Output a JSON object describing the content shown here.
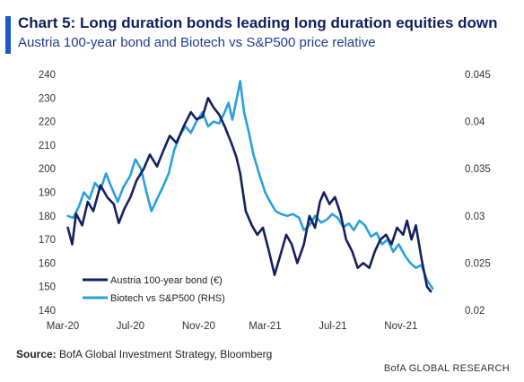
{
  "header": {
    "title": "Chart 5: Long duration bonds leading long duration equities down",
    "subtitle": "Austria 100-year bond and Biotech vs S&P500 price relative"
  },
  "source": {
    "label": "Source:",
    "text": "BofA Global Investment Strategy, Bloomberg"
  },
  "footer": {
    "brand": "BofA GLOBAL RESEARCH"
  },
  "colors": {
    "accent": "#1f58c9",
    "austria": "#14205e",
    "biotech": "#2aa0dc"
  },
  "chart_data": {
    "type": "line",
    "x_tick_labels": [
      "Mar-20",
      "Jul-20",
      "Nov-20",
      "Mar-21",
      "Jul-21",
      "Nov-21"
    ],
    "x_ticks": [
      "2020-03-01",
      "2020-07-01",
      "2020-11-01",
      "2021-03-01",
      "2021-07-01",
      "2021-11-01"
    ],
    "xlim": [
      "2020-03-01",
      "2022-01-05"
    ],
    "y_left": {
      "ylim": [
        140,
        240
      ],
      "ticks": [
        "140",
        "150",
        "160",
        "170",
        "180",
        "190",
        "200",
        "210",
        "220",
        "230",
        "240"
      ]
    },
    "y_right": {
      "ylim": [
        0.02,
        0.045
      ],
      "ticks": [
        "0.02",
        "0.025",
        "0.03",
        "0.035",
        "0.04",
        "0.045"
      ]
    },
    "grid": false,
    "legend_position": "bottom-left",
    "series": [
      {
        "name": "Austria 100-year bond (€)",
        "axis": "left",
        "color": "#14205e",
        "points": [
          [
            "2020-03-10",
            175
          ],
          [
            "2020-03-18",
            168
          ],
          [
            "2020-03-25",
            181
          ],
          [
            "2020-04-05",
            176
          ],
          [
            "2020-04-15",
            186
          ],
          [
            "2020-04-25",
            182
          ],
          [
            "2020-05-08",
            193
          ],
          [
            "2020-05-20",
            188
          ],
          [
            "2020-06-01",
            185
          ],
          [
            "2020-06-10",
            177
          ],
          [
            "2020-06-20",
            183
          ],
          [
            "2020-07-01",
            188
          ],
          [
            "2020-07-12",
            195
          ],
          [
            "2020-07-25",
            200
          ],
          [
            "2020-08-05",
            206
          ],
          [
            "2020-08-18",
            201
          ],
          [
            "2020-08-30",
            208
          ],
          [
            "2020-09-10",
            214
          ],
          [
            "2020-09-22",
            211
          ],
          [
            "2020-10-05",
            218
          ],
          [
            "2020-10-18",
            224
          ],
          [
            "2020-10-28",
            221
          ],
          [
            "2020-11-08",
            222
          ],
          [
            "2020-11-18",
            230
          ],
          [
            "2020-11-28",
            226
          ],
          [
            "2020-12-08",
            223
          ],
          [
            "2020-12-18",
            218
          ],
          [
            "2020-12-30",
            211
          ],
          [
            "2021-01-08",
            205
          ],
          [
            "2021-01-15",
            198
          ],
          [
            "2021-01-25",
            182
          ],
          [
            "2021-02-05",
            176
          ],
          [
            "2021-02-15",
            172
          ],
          [
            "2021-02-25",
            175
          ],
          [
            "2021-03-08",
            165
          ],
          [
            "2021-03-18",
            155
          ],
          [
            "2021-03-28",
            163
          ],
          [
            "2021-04-08",
            172
          ],
          [
            "2021-04-18",
            168
          ],
          [
            "2021-04-28",
            160
          ],
          [
            "2021-05-10",
            168
          ],
          [
            "2021-05-20",
            180
          ],
          [
            "2021-05-30",
            175
          ],
          [
            "2021-06-08",
            186
          ],
          [
            "2021-06-15",
            190
          ],
          [
            "2021-06-25",
            185
          ],
          [
            "2021-07-05",
            188
          ],
          [
            "2021-07-15",
            181
          ],
          [
            "2021-07-25",
            170
          ],
          [
            "2021-08-05",
            165
          ],
          [
            "2021-08-15",
            158
          ],
          [
            "2021-08-25",
            160
          ],
          [
            "2021-09-05",
            158
          ],
          [
            "2021-09-15",
            165
          ],
          [
            "2021-09-25",
            170
          ],
          [
            "2021-10-05",
            172
          ],
          [
            "2021-10-15",
            168
          ],
          [
            "2021-10-25",
            175
          ],
          [
            "2021-11-05",
            172
          ],
          [
            "2021-11-12",
            178
          ],
          [
            "2021-11-20",
            170
          ],
          [
            "2021-11-28",
            176
          ],
          [
            "2021-12-08",
            162
          ],
          [
            "2021-12-18",
            150
          ],
          [
            "2021-12-25",
            148
          ]
        ]
      },
      {
        "name": "Biotech vs S&P500 (RHS)",
        "axis": "right",
        "color": "#2aa0dc",
        "points": [
          [
            "2020-03-10",
            0.03
          ],
          [
            "2020-03-20",
            0.0298
          ],
          [
            "2020-03-30",
            0.031
          ],
          [
            "2020-04-08",
            0.0325
          ],
          [
            "2020-04-18",
            0.0318
          ],
          [
            "2020-04-28",
            0.0335
          ],
          [
            "2020-05-08",
            0.0328
          ],
          [
            "2020-05-18",
            0.0345
          ],
          [
            "2020-05-28",
            0.033
          ],
          [
            "2020-06-08",
            0.0315
          ],
          [
            "2020-06-18",
            0.033
          ],
          [
            "2020-06-30",
            0.0342
          ],
          [
            "2020-07-10",
            0.036
          ],
          [
            "2020-07-20",
            0.035
          ],
          [
            "2020-07-30",
            0.0325
          ],
          [
            "2020-08-08",
            0.0305
          ],
          [
            "2020-08-18",
            0.0318
          ],
          [
            "2020-08-28",
            0.033
          ],
          [
            "2020-09-08",
            0.0345
          ],
          [
            "2020-09-18",
            0.037
          ],
          [
            "2020-09-28",
            0.0385
          ],
          [
            "2020-10-08",
            0.0395
          ],
          [
            "2020-10-18",
            0.0388
          ],
          [
            "2020-10-28",
            0.04
          ],
          [
            "2020-11-08",
            0.041
          ],
          [
            "2020-11-18",
            0.0395
          ],
          [
            "2020-11-28",
            0.04
          ],
          [
            "2020-12-08",
            0.0398
          ],
          [
            "2020-12-18",
            0.041
          ],
          [
            "2020-12-25",
            0.042
          ],
          [
            "2021-01-01",
            0.0402
          ],
          [
            "2021-01-10",
            0.0428
          ],
          [
            "2021-01-15",
            0.0443
          ],
          [
            "2021-01-22",
            0.041
          ],
          [
            "2021-01-30",
            0.039
          ],
          [
            "2021-02-08",
            0.0365
          ],
          [
            "2021-02-18",
            0.0345
          ],
          [
            "2021-03-01",
            0.0325
          ],
          [
            "2021-03-10",
            0.0315
          ],
          [
            "2021-03-20",
            0.0305
          ],
          [
            "2021-03-30",
            0.0302
          ],
          [
            "2021-04-10",
            0.03
          ],
          [
            "2021-04-20",
            0.0302
          ],
          [
            "2021-05-01",
            0.0298
          ],
          [
            "2021-05-10",
            0.0285
          ],
          [
            "2021-05-20",
            0.029
          ],
          [
            "2021-05-30",
            0.03
          ],
          [
            "2021-06-10",
            0.0293
          ],
          [
            "2021-06-20",
            0.0296
          ],
          [
            "2021-06-30",
            0.0302
          ],
          [
            "2021-07-10",
            0.0298
          ],
          [
            "2021-07-20",
            0.0288
          ],
          [
            "2021-07-30",
            0.0292
          ],
          [
            "2021-08-08",
            0.0285
          ],
          [
            "2021-08-18",
            0.0295
          ],
          [
            "2021-08-28",
            0.029
          ],
          [
            "2021-09-08",
            0.0278
          ],
          [
            "2021-09-18",
            0.0282
          ],
          [
            "2021-09-28",
            0.027
          ],
          [
            "2021-10-08",
            0.0275
          ],
          [
            "2021-10-18",
            0.0262
          ],
          [
            "2021-10-28",
            0.027
          ],
          [
            "2021-11-08",
            0.0258
          ],
          [
            "2021-11-18",
            0.025
          ],
          [
            "2021-11-28",
            0.0245
          ],
          [
            "2021-12-08",
            0.0248
          ],
          [
            "2021-12-18",
            0.0232
          ],
          [
            "2021-12-28",
            0.0223
          ]
        ]
      }
    ]
  }
}
